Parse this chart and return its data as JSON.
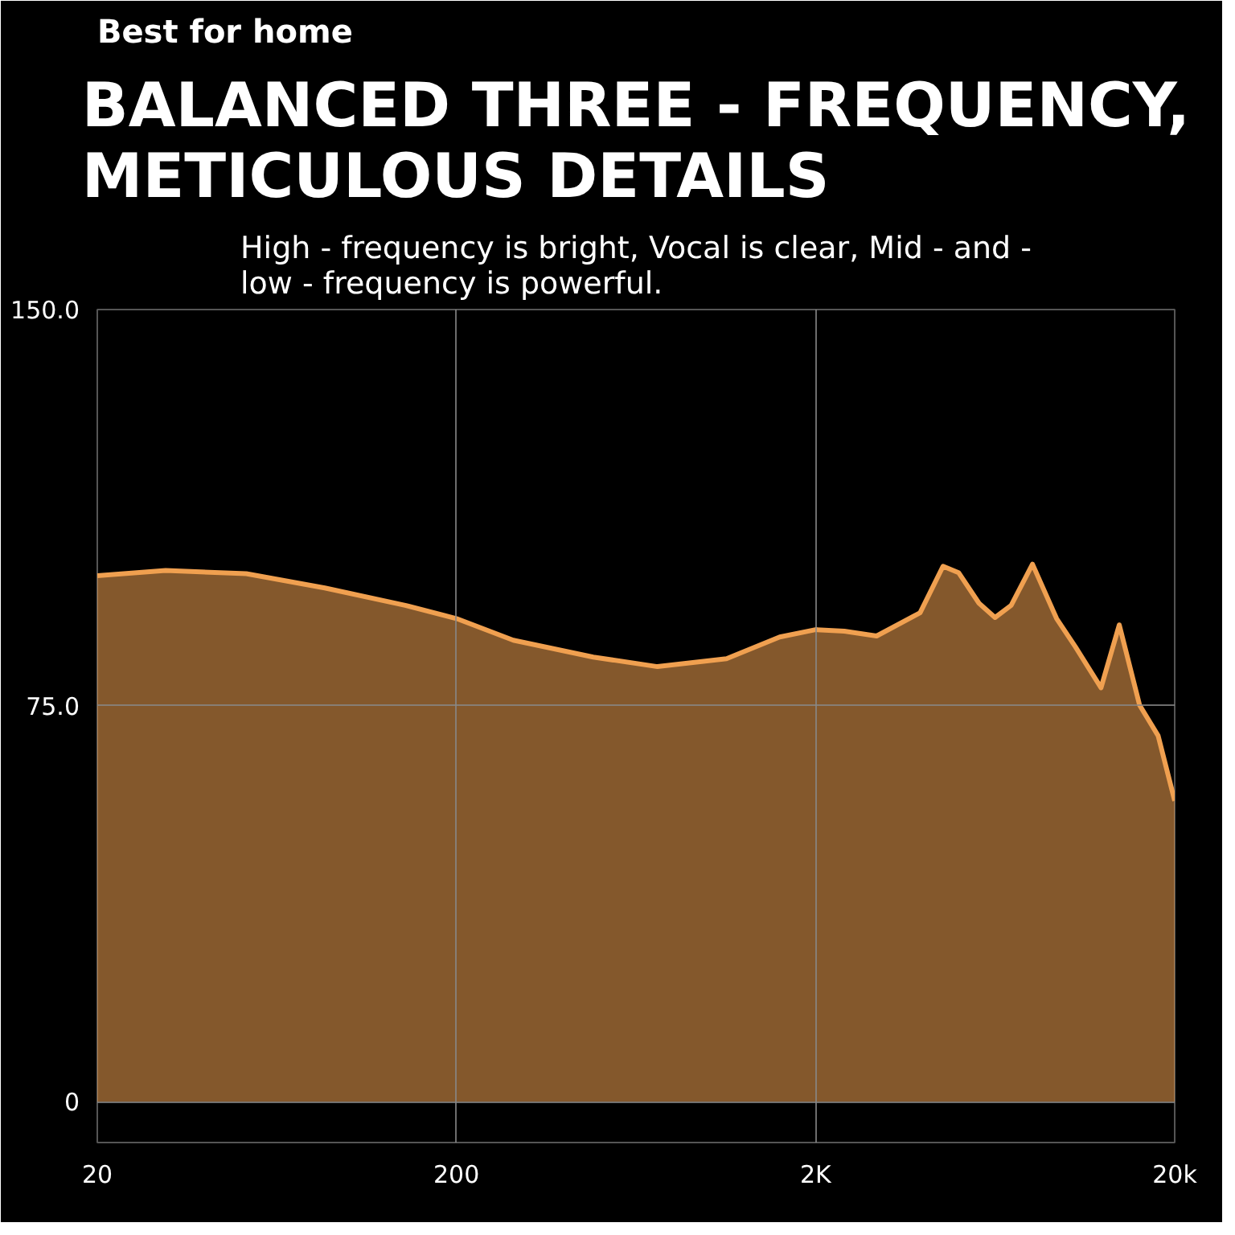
{
  "chart_data": {
    "type": "area",
    "title": "BALANCED THREE - FREQUENCY, METICULOUS DETAILS",
    "subtitle": "High - frequency is bright, Vocal is clear, Mid - and - low - frequency is powerful.",
    "annotations": [
      "Best for home"
    ],
    "x": [
      20,
      31,
      52,
      86,
      144,
      200,
      288,
      481,
      726,
      1130,
      1589,
      2000,
      2406,
      2958,
      3909,
      4529,
      5003,
      5703,
      6320,
      7010,
      8036,
      9380,
      10570,
      12470,
      14020,
      15970,
      17990,
      20000
    ],
    "series": [
      {
        "color": "#f0a050",
        "values": [
          99.6,
          100.6,
          100.0,
          97.3,
          94.0,
          91.5,
          87.4,
          84.2,
          82.4,
          83.9,
          88.0,
          89.4,
          89.1,
          88.2,
          92.6,
          101.4,
          100.2,
          94.4,
          91.7,
          94.0,
          101.8,
          91.5,
          86.2,
          78.4,
          90.3,
          75.1,
          69.3,
          57.0
        ]
      }
    ],
    "log": "x",
    "xlim": [
      20,
      20000
    ],
    "ylim": [
      -7.7,
      150
    ],
    "xticks": [
      20,
      200,
      {
        "value": 2000,
        "label": "2K"
      },
      {
        "value": 20000,
        "label": "20k"
      }
    ],
    "yticks": [
      0,
      {
        "value": 75,
        "label": "75.0"
      },
      {
        "value": 150,
        "label": "150.0"
      }
    ],
    "grid": true,
    "line_style": "solid",
    "marker": "none"
  }
}
